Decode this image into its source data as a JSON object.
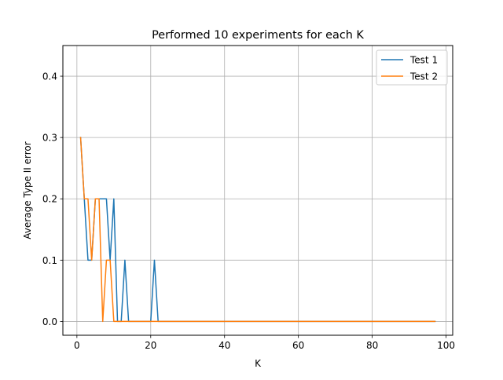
{
  "chart_data": {
    "type": "line",
    "title": "Performed 10 experiments for each K",
    "xlabel": "K",
    "ylabel": "Average Type II error",
    "xlim": [
      -3.8,
      101.8
    ],
    "ylim": [
      -0.0225,
      0.45
    ],
    "xticks": [
      0,
      20,
      40,
      60,
      80,
      100
    ],
    "yticks": [
      0.0,
      0.1,
      0.2,
      0.3,
      0.4
    ],
    "xtick_labels": [
      "0",
      "20",
      "40",
      "60",
      "80",
      "100"
    ],
    "ytick_labels": [
      "0.0",
      "0.1",
      "0.2",
      "0.3",
      "0.4"
    ],
    "grid": true,
    "legend": "top-right",
    "series": [
      {
        "name": "Test 1",
        "color": "#1f77b4",
        "x": [
          1,
          2,
          3,
          4,
          5,
          6,
          7,
          8,
          9,
          10,
          11,
          12,
          13,
          14,
          15,
          16,
          17,
          18,
          19,
          20,
          21,
          22,
          23,
          30,
          40,
          50,
          60,
          70,
          80,
          90,
          97
        ],
        "y": [
          0.3,
          0.2,
          0.1,
          0.1,
          0.2,
          0.2,
          0.2,
          0.2,
          0.1,
          0.2,
          0.0,
          0.0,
          0.1,
          0.0,
          0.0,
          0.0,
          0.0,
          0.0,
          0.0,
          0.0,
          0.1,
          0.0,
          0.0,
          0.0,
          0.0,
          0.0,
          0.0,
          0.0,
          0.0,
          0.0,
          0.0
        ]
      },
      {
        "name": "Test 2",
        "color": "#ff7f0e",
        "x": [
          1,
          2,
          3,
          4,
          5,
          6,
          7,
          8,
          9,
          10,
          11,
          12,
          13,
          14,
          20,
          30,
          40,
          50,
          60,
          70,
          80,
          90,
          97
        ],
        "y": [
          0.3,
          0.2,
          0.2,
          0.1,
          0.2,
          0.2,
          0.0,
          0.1,
          0.1,
          0.0,
          0.0,
          0.0,
          0.0,
          0.0,
          0.0,
          0.0,
          0.0,
          0.0,
          0.0,
          0.0,
          0.0,
          0.0,
          0.0
        ]
      }
    ]
  }
}
